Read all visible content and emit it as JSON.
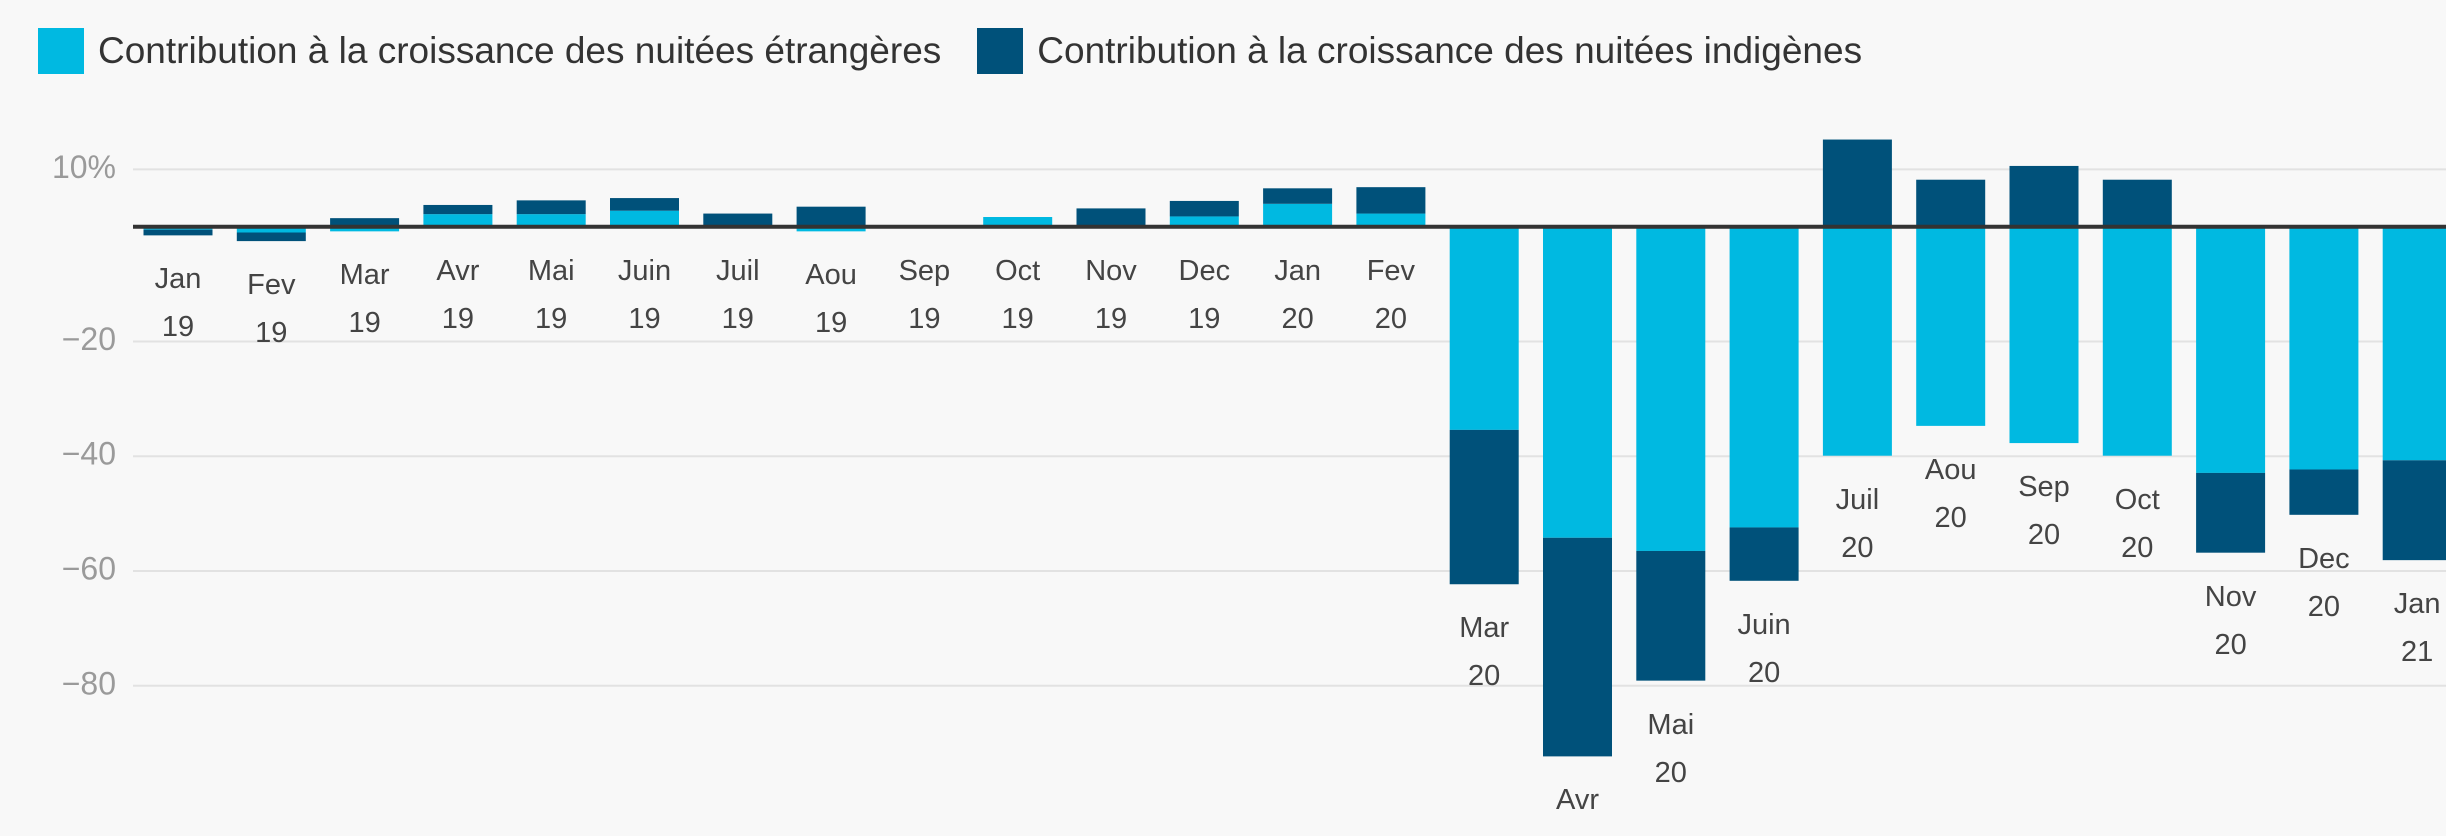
{
  "chart_data": {
    "type": "bar",
    "stacked": true,
    "categories": [
      "Jan 19",
      "Fev 19",
      "Mar 19",
      "Avr 19",
      "Mai 19",
      "Juin 19",
      "Juil 19",
      "Aou 19",
      "Sep 19",
      "Oct 19",
      "Nov 19",
      "Dec 19",
      "Jan 20",
      "Fev 20",
      "Mar 20",
      "Avr 20",
      "Mai 20",
      "Juin 20",
      "Juil 20",
      "Aou 20",
      "Sep 20",
      "Oct 20",
      "Nov 20",
      "Dec 20",
      "Jan 21"
    ],
    "series": [
      {
        "name": "Contribution à la croissance des nuitées étrangères",
        "color": "#00b9e1",
        "values": [
          -0.5,
          -1,
          -0.8,
          2.2,
          2.2,
          2.8,
          0.3,
          -0.8,
          0,
          1.7,
          0.2,
          1.8,
          4,
          2.3,
          -35.4,
          -54.2,
          -56.5,
          -52.4,
          -39.9,
          -34.7,
          -37.7,
          -39.9,
          -42.9,
          -42.3,
          -40.7
        ]
      },
      {
        "name": "Contribution à la croissance des nuitées indigènes",
        "color": "#00517a",
        "values": [
          -1,
          -1.5,
          1.5,
          1.6,
          2.4,
          2.2,
          2,
          3.5,
          0,
          0,
          3,
          2.7,
          2.7,
          4.6,
          -26.9,
          -38.1,
          -22.6,
          -9.3,
          15.2,
          8.2,
          10.6,
          8.2,
          -13.9,
          -7.9,
          -17.4
        ]
      }
    ],
    "ylim": [
      -106,
      20
    ],
    "yticks": [
      {
        "value": 10,
        "label": "10%"
      },
      {
        "value": -20,
        "label": "−20"
      },
      {
        "value": -40,
        "label": "−40"
      },
      {
        "value": -60,
        "label": "−60"
      },
      {
        "value": -80,
        "label": "−80"
      }
    ],
    "grid": true,
    "legend": "top-left"
  }
}
